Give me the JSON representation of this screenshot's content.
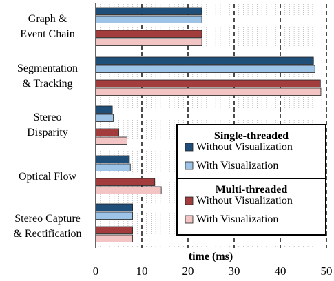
{
  "chart_data": {
    "type": "bar",
    "orientation": "horizontal",
    "xlabel": "time (ms)",
    "xlim": [
      0,
      50
    ],
    "xticks": [
      0,
      10,
      20,
      30,
      40,
      50
    ],
    "grid": "dotted minor gridlines every 1 ms, dashed major gridlines every 10 ms",
    "categories": [
      [
        "Graph &",
        "Event Chain"
      ],
      [
        "Segmentation",
        "& Tracking"
      ],
      [
        "Stereo",
        "Disparity"
      ],
      [
        "Optical Flow"
      ],
      [
        "Stereo Capture",
        "& Rectification"
      ]
    ],
    "legend_groups": [
      {
        "title": "Single-threaded",
        "entries": [
          0,
          1
        ]
      },
      {
        "title": "Multi-threaded",
        "entries": [
          2,
          3
        ]
      }
    ],
    "legend_position": "lower-right (inside plot)",
    "series": [
      {
        "name": "Without Visualization",
        "group": "Single-threaded",
        "color": "#1f4e79",
        "values": [
          23,
          47.2,
          3.6,
          7.3,
          8
        ]
      },
      {
        "name": "With Visualization",
        "group": "Single-threaded",
        "color": "#9dc3e6",
        "values": [
          23,
          47.5,
          3.8,
          7.5,
          8
        ]
      },
      {
        "name": "Without Visualization",
        "group": "Multi-threaded",
        "color": "#a33c3c",
        "values": [
          23,
          48.7,
          5,
          12.8,
          8
        ]
      },
      {
        "name": "With Visualization",
        "group": "Multi-threaded",
        "color": "#f2c4c4",
        "values": [
          23,
          48.8,
          6.8,
          14.2,
          8
        ]
      }
    ]
  }
}
